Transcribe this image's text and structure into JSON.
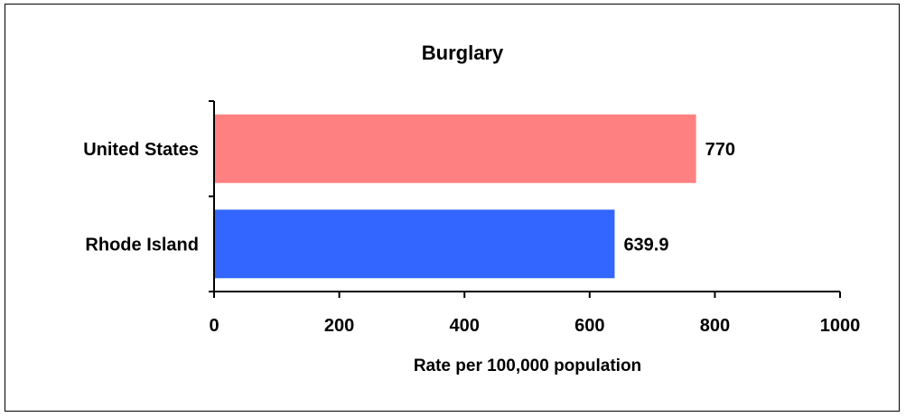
{
  "chart_data": {
    "type": "bar",
    "orientation": "horizontal",
    "title": "Burglary",
    "xlabel": "Rate per 100,000 population",
    "ylabel": "",
    "xlim": [
      0,
      1000
    ],
    "xticks": [
      0,
      200,
      400,
      600,
      800,
      1000
    ],
    "tick_labels": [
      "0",
      "200",
      "400",
      "600",
      "800",
      "1000"
    ],
    "grid": false,
    "legend": "none",
    "categories": [
      "United States",
      "Rhode Island"
    ],
    "values": [
      770,
      639.9
    ],
    "data_labels": [
      "770",
      "639.9"
    ],
    "colors": [
      "#ff8080",
      "#3366ff"
    ]
  }
}
